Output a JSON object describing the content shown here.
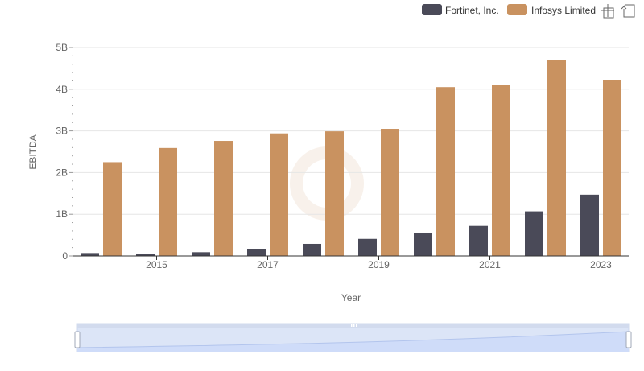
{
  "chart_data": {
    "type": "bar",
    "title": "",
    "xlabel": "Year",
    "ylabel": "EBITDA",
    "ylim": [
      0,
      5000000000
    ],
    "y_ticks": [
      {
        "value": 0,
        "label": "0"
      },
      {
        "value": 1000000000,
        "label": "1B"
      },
      {
        "value": 2000000000,
        "label": "2B"
      },
      {
        "value": 3000000000,
        "label": "3B"
      },
      {
        "value": 4000000000,
        "label": "4B"
      },
      {
        "value": 5000000000,
        "label": "5B"
      }
    ],
    "x_tick_labels": [
      "2015",
      "2017",
      "2019",
      "2021",
      "2023"
    ],
    "categories": [
      "2014",
      "2015",
      "2016",
      "2017",
      "2018",
      "2019",
      "2020",
      "2021",
      "2022",
      "2023"
    ],
    "series": [
      {
        "name": "Fortinet, Inc.",
        "color": "#4a4a58",
        "values": [
          70000000,
          50000000,
          90000000,
          170000000,
          290000000,
          410000000,
          560000000,
          720000000,
          1070000000,
          1470000000
        ]
      },
      {
        "name": "Infosys Limited",
        "color": "#c99260",
        "values": [
          2250000000,
          2590000000,
          2760000000,
          2940000000,
          2990000000,
          3050000000,
          4050000000,
          4110000000,
          4710000000,
          4210000000
        ]
      }
    ],
    "legend_position": "top-right",
    "grid": true
  },
  "toolbar": {
    "zoom_icon": "zoom-select-icon",
    "restore_icon": "restore-icon"
  }
}
